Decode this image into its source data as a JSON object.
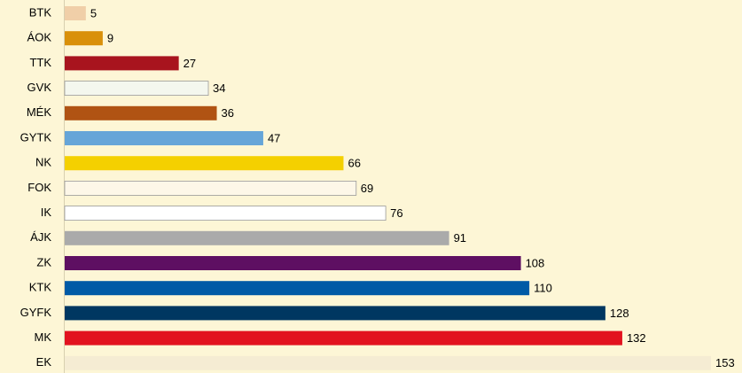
{
  "chart_data": {
    "type": "hbar",
    "categories": [
      "BTK",
      "ÁOK",
      "TTK",
      "GVK",
      "MÉK",
      "GYTK",
      "NK",
      "FOK",
      "IK",
      "ÁJK",
      "ZK",
      "KTK",
      "GYFK",
      "MK",
      "EK"
    ],
    "values": [
      5,
      9,
      27,
      34,
      36,
      47,
      66,
      69,
      76,
      91,
      108,
      110,
      128,
      132,
      153
    ],
    "colors": [
      "#f0cfa8",
      "#d9900a",
      "#a8141e",
      "#f4f7ee",
      "#b05313",
      "#66a5d8",
      "#f4d000",
      "#fdf7e8",
      "#ffffff",
      "#aaaaaa",
      "#5e0f62",
      "#005aa6",
      "#003761",
      "#e2121e",
      "#f5ecd3"
    ]
  }
}
